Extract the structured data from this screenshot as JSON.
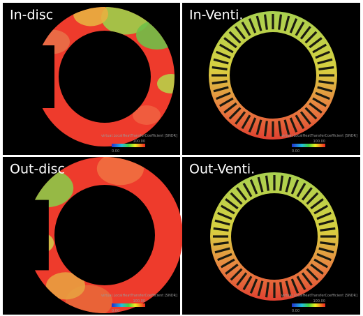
{
  "panels": [
    {
      "label": "In-disc",
      "caption": "virtual.LocalHeatTransferCoefficient [SNDR]",
      "max": "100.00",
      "min": "0.00"
    },
    {
      "label": "In-Venti.",
      "caption": "virtual.LocalHeatTransferCoefficient [SNDR]",
      "max": "100.00",
      "min": "0.00"
    },
    {
      "label": "Out-disc",
      "caption": "virtual.LocalHeatTransferCoefficient [SNDR]",
      "max": "100.00",
      "min": "0.00"
    },
    {
      "label": "Out-Venti.",
      "caption": "virtual.LocalHeatTransferCoefficient [SNDR]",
      "max": "100.00",
      "min": "0.00"
    }
  ]
}
